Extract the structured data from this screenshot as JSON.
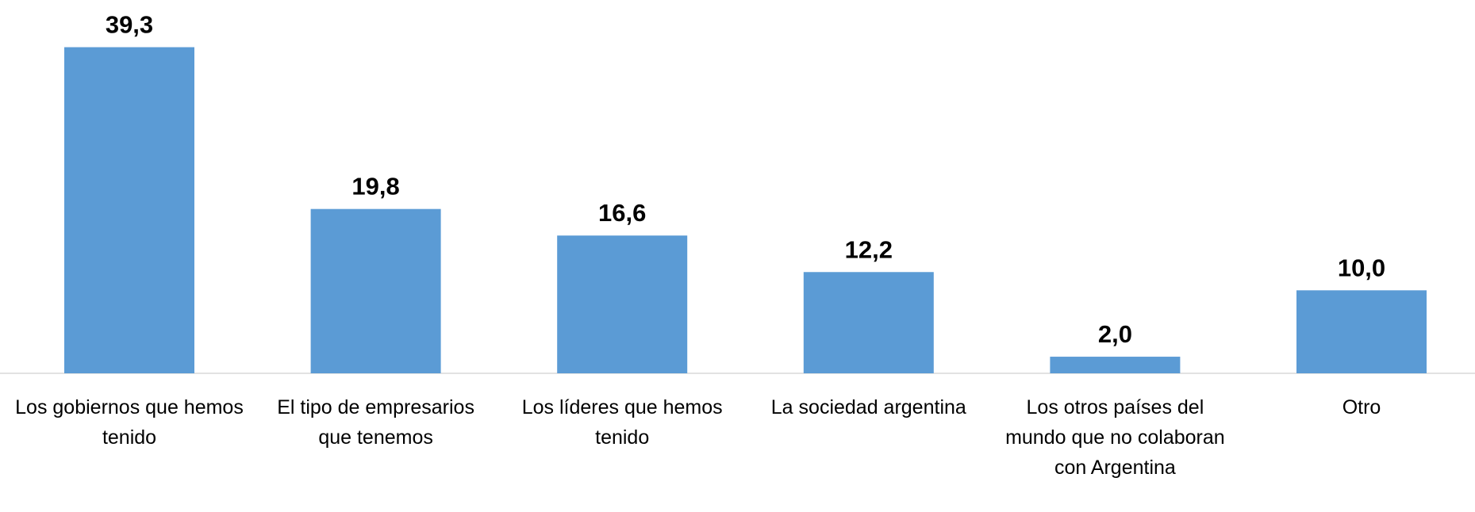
{
  "chart_data": {
    "type": "bar",
    "categories": [
      "Los gobiernos que hemos tenido",
      "El tipo de empresarios que tenemos",
      "Los líderes que hemos tenido",
      "La sociedad argentina",
      "Los otros países del mundo que no colaboran con Argentina",
      "Otro"
    ],
    "values": [
      39.3,
      19.8,
      16.6,
      12.2,
      2.0,
      10.0
    ],
    "value_labels": [
      "39,3",
      "19,8",
      "16,6",
      "12,2",
      "2,0",
      "10,0"
    ],
    "color": "#5b9bd5"
  }
}
